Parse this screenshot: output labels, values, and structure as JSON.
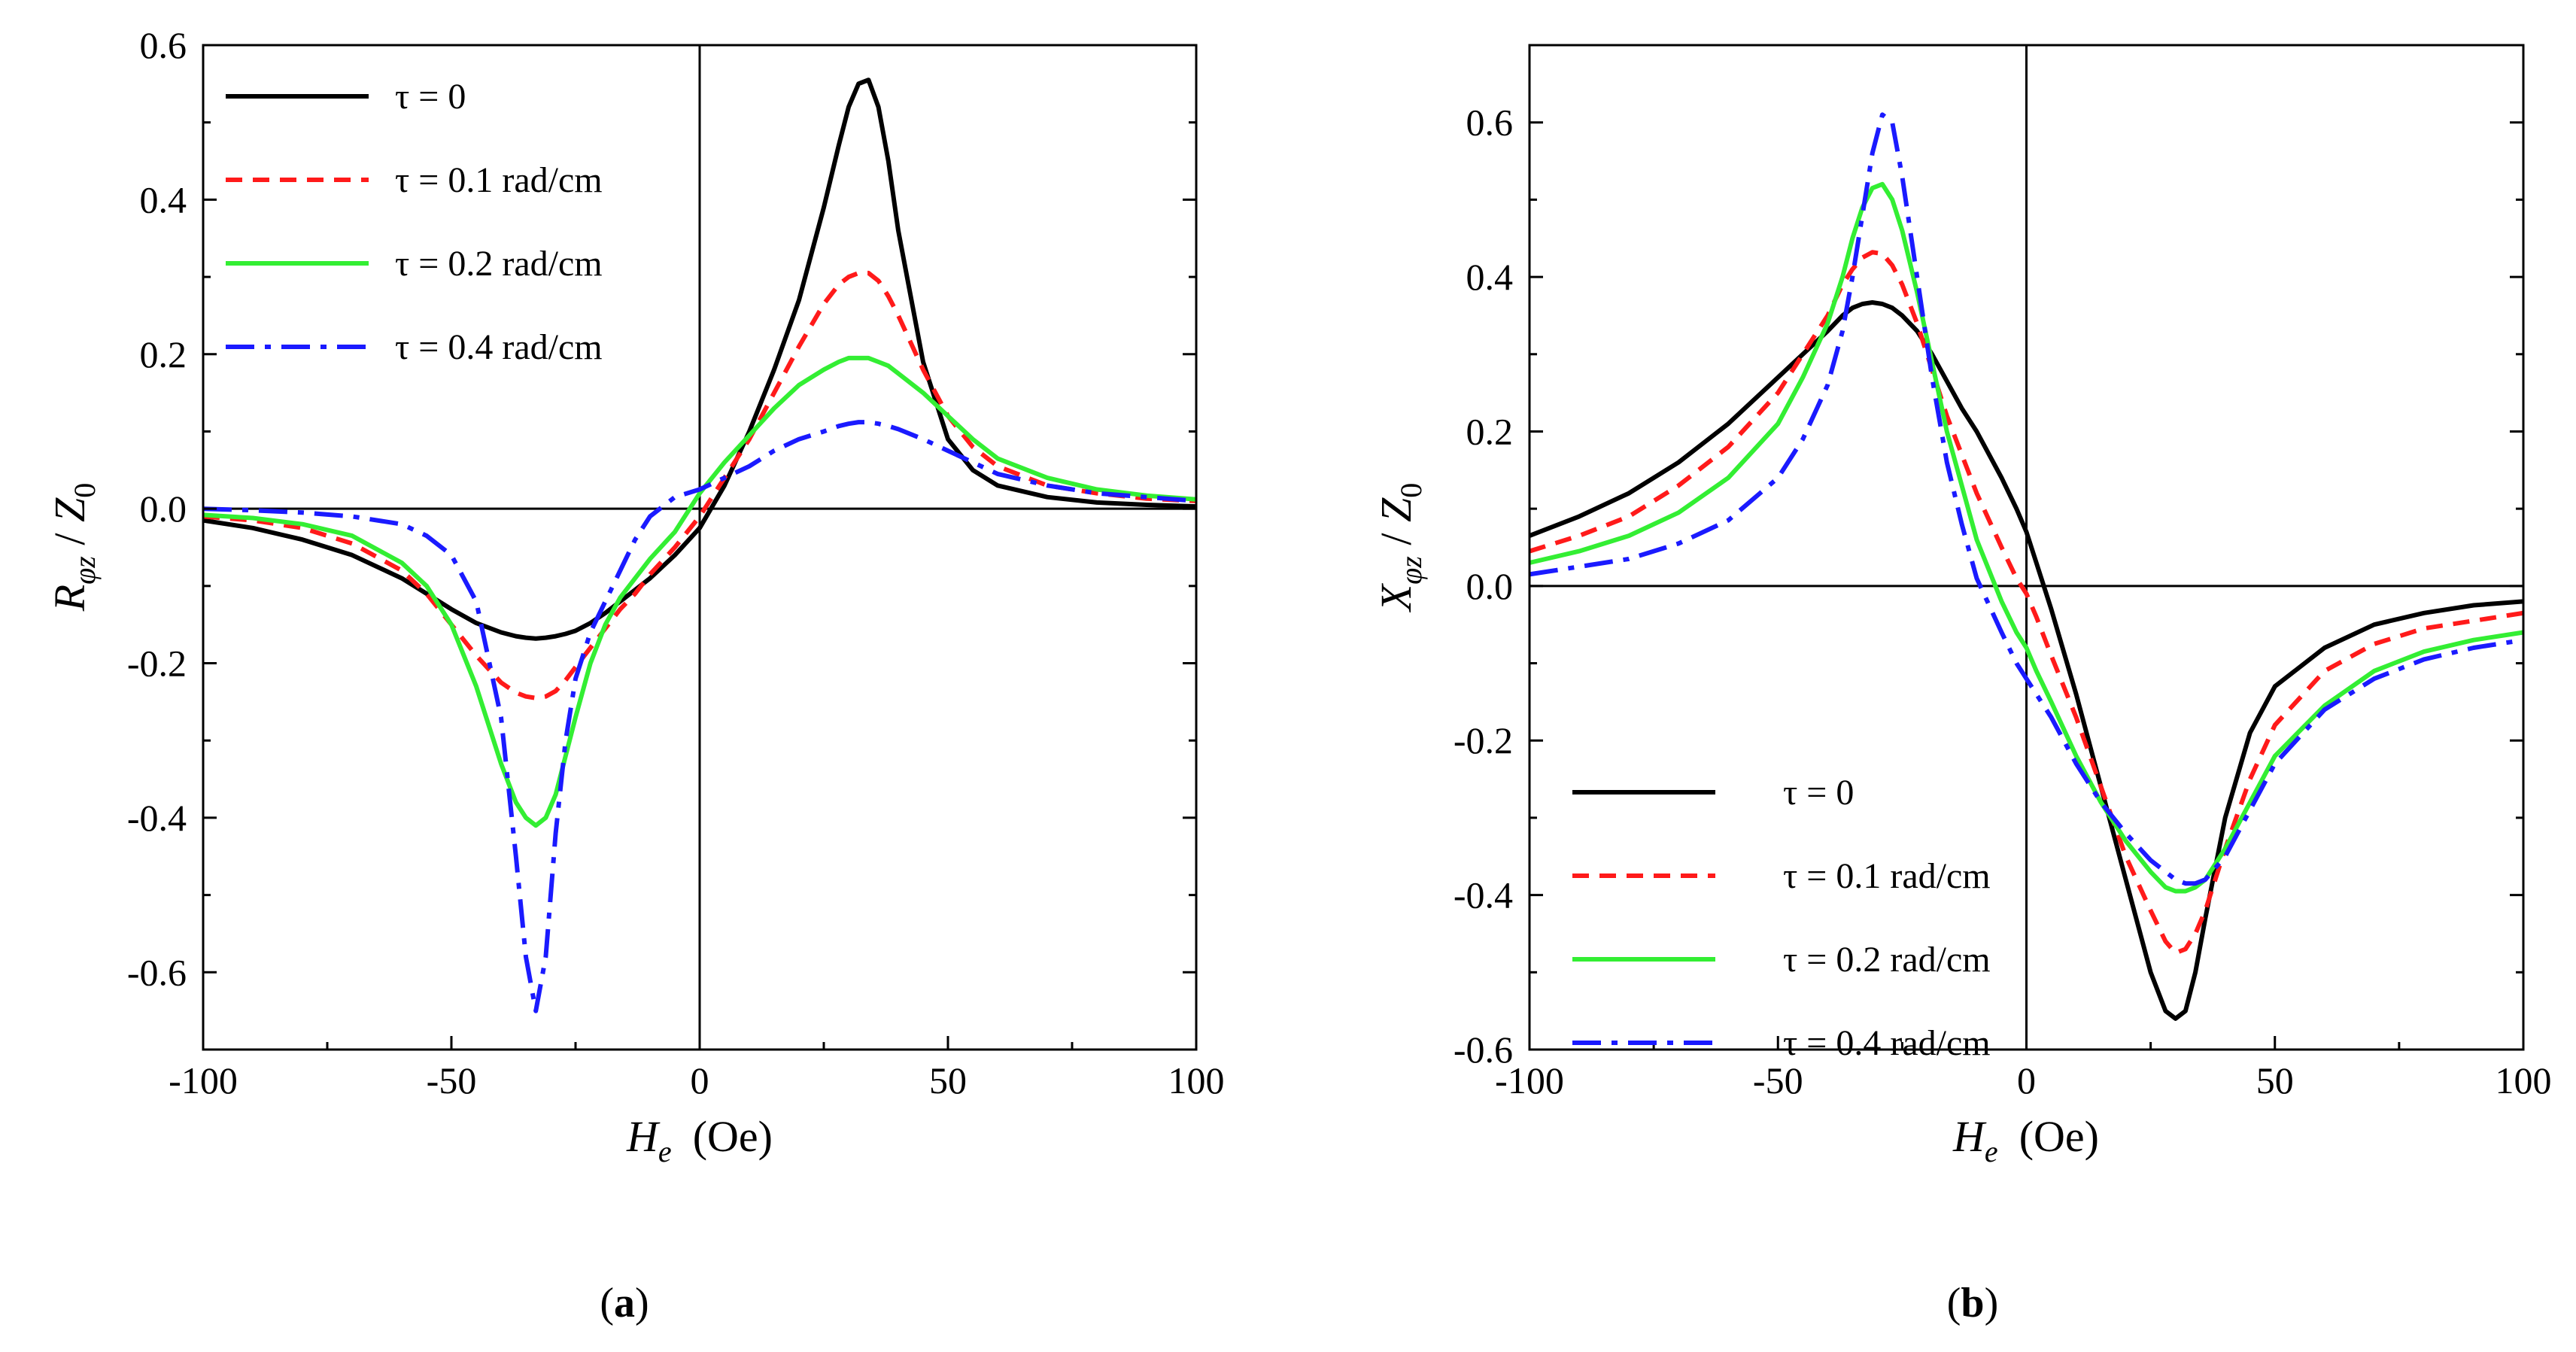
{
  "chart_data": [
    {
      "type": "line",
      "panel_label": "(a)",
      "panel_letter": "a",
      "ylabel": {
        "main": "R",
        "sub": "φz",
        "denom": "Z",
        "denom_sub": "0",
        "sep": " / "
      },
      "xlabel": {
        "main": "H",
        "sub": "e",
        "unit": "(Oe)"
      },
      "xlim": [
        -100,
        100
      ],
      "ylim": [
        -0.7,
        0.6
      ],
      "xticks": [
        -100,
        -50,
        0,
        50,
        100
      ],
      "xtick_labels": [
        "-100",
        "-50",
        "0",
        "50",
        "100"
      ],
      "yticks": [
        -0.6,
        -0.4,
        -0.2,
        0.0,
        0.2,
        0.4,
        0.6
      ],
      "ytick_labels": [
        "-0.6",
        "-0.4",
        "-0.2",
        "0.0",
        "0.2",
        "0.4",
        "0.6"
      ],
      "legend_position": "top-left",
      "x": [
        -100,
        -90,
        -80,
        -70,
        -60,
        -55,
        -50,
        -45,
        -40,
        -37,
        -35,
        -33,
        -31,
        -29,
        -27,
        -25,
        -22,
        -19,
        -16,
        -13,
        -10,
        -5,
        0,
        5,
        10,
        15,
        20,
        25,
        28,
        30,
        32,
        34,
        36,
        38,
        40,
        45,
        50,
        55,
        60,
        70,
        80,
        90,
        100
      ],
      "series": [
        {
          "name": "τ = 0",
          "color": "#000000",
          "style": "solid",
          "values": [
            -0.015,
            -0.025,
            -0.04,
            -0.06,
            -0.09,
            -0.11,
            -0.13,
            -0.148,
            -0.16,
            -0.165,
            -0.167,
            -0.168,
            -0.167,
            -0.165,
            -0.162,
            -0.158,
            -0.148,
            -0.135,
            -0.12,
            -0.105,
            -0.09,
            -0.06,
            -0.025,
            0.03,
            0.1,
            0.18,
            0.27,
            0.39,
            0.47,
            0.52,
            0.55,
            0.555,
            0.52,
            0.45,
            0.36,
            0.19,
            0.09,
            0.05,
            0.03,
            0.015,
            0.008,
            0.005,
            0.003
          ]
        },
        {
          "name": "τ = 0.1 rad/cm",
          "color": "#ff1a1a",
          "style": "dashed",
          "values": [
            -0.01,
            -0.015,
            -0.025,
            -0.045,
            -0.08,
            -0.11,
            -0.15,
            -0.19,
            -0.225,
            -0.238,
            -0.243,
            -0.245,
            -0.243,
            -0.236,
            -0.222,
            -0.205,
            -0.18,
            -0.155,
            -0.13,
            -0.11,
            -0.085,
            -0.05,
            -0.01,
            0.04,
            0.09,
            0.15,
            0.21,
            0.265,
            0.29,
            0.3,
            0.305,
            0.305,
            0.295,
            0.275,
            0.25,
            0.18,
            0.12,
            0.08,
            0.055,
            0.03,
            0.02,
            0.013,
            0.01
          ]
        },
        {
          "name": "τ = 0.2 rad/cm",
          "color": "#33ee33",
          "style": "solid",
          "values": [
            -0.008,
            -0.012,
            -0.02,
            -0.035,
            -0.07,
            -0.1,
            -0.15,
            -0.23,
            -0.33,
            -0.38,
            -0.4,
            -0.41,
            -0.4,
            -0.37,
            -0.32,
            -0.27,
            -0.2,
            -0.15,
            -0.115,
            -0.09,
            -0.065,
            -0.03,
            0.02,
            0.06,
            0.095,
            0.13,
            0.16,
            0.18,
            0.19,
            0.195,
            0.195,
            0.195,
            0.19,
            0.185,
            0.175,
            0.15,
            0.12,
            0.09,
            0.065,
            0.04,
            0.025,
            0.017,
            0.012
          ]
        },
        {
          "name": "τ = 0.4 rad/cm",
          "color": "#1a1aff",
          "style": "dashdot",
          "values": [
            0.0,
            -0.002,
            -0.005,
            -0.01,
            -0.02,
            -0.035,
            -0.06,
            -0.12,
            -0.27,
            -0.45,
            -0.58,
            -0.65,
            -0.58,
            -0.42,
            -0.3,
            -0.22,
            -0.16,
            -0.12,
            -0.08,
            -0.04,
            -0.01,
            0.015,
            0.025,
            0.04,
            0.055,
            0.075,
            0.09,
            0.1,
            0.107,
            0.11,
            0.112,
            0.112,
            0.11,
            0.107,
            0.103,
            0.09,
            0.075,
            0.06,
            0.045,
            0.03,
            0.02,
            0.015,
            0.01
          ]
        }
      ]
    },
    {
      "type": "line",
      "panel_label": "(b)",
      "panel_letter": "b",
      "ylabel": {
        "main": "X",
        "sub": "φz",
        "denom": "Z",
        "denom_sub": "0",
        "sep": " / "
      },
      "xlabel": {
        "main": "H",
        "sub": "e",
        "unit": "(Oe)"
      },
      "xlim": [
        -100,
        100
      ],
      "ylim": [
        -0.6,
        0.7
      ],
      "xticks": [
        -100,
        -50,
        0,
        50,
        100
      ],
      "xtick_labels": [
        "-100",
        "-50",
        "0",
        "50",
        "100"
      ],
      "yticks": [
        -0.6,
        -0.4,
        -0.2,
        0.0,
        0.2,
        0.4,
        0.6
      ],
      "ytick_labels": [
        "-0.6",
        "-0.4",
        "-0.2",
        "0.0",
        "0.2",
        "0.4",
        "0.6"
      ],
      "legend_position": "bottom-left",
      "x": [
        -100,
        -90,
        -80,
        -70,
        -60,
        -50,
        -45,
        -40,
        -37,
        -35,
        -33,
        -31,
        -29,
        -27,
        -25,
        -22,
        -19,
        -16,
        -13,
        -10,
        -5,
        -2,
        0,
        2,
        5,
        10,
        15,
        20,
        25,
        28,
        30,
        32,
        34,
        36,
        40,
        45,
        50,
        60,
        70,
        80,
        90,
        100
      ],
      "series": [
        {
          "name": "τ = 0",
          "color": "#000000",
          "style": "solid",
          "values": [
            0.065,
            0.09,
            0.12,
            0.16,
            0.21,
            0.27,
            0.3,
            0.33,
            0.35,
            0.36,
            0.365,
            0.367,
            0.365,
            0.36,
            0.35,
            0.33,
            0.3,
            0.265,
            0.23,
            0.2,
            0.14,
            0.1,
            0.07,
            0.03,
            -0.03,
            -0.14,
            -0.26,
            -0.38,
            -0.5,
            -0.55,
            -0.56,
            -0.55,
            -0.5,
            -0.43,
            -0.3,
            -0.19,
            -0.13,
            -0.08,
            -0.05,
            -0.035,
            -0.025,
            -0.02
          ]
        },
        {
          "name": "τ = 0.1 rad/cm",
          "color": "#ff1a1a",
          "style": "dashed",
          "values": [
            0.045,
            0.065,
            0.09,
            0.13,
            0.18,
            0.25,
            0.3,
            0.35,
            0.39,
            0.41,
            0.425,
            0.432,
            0.43,
            0.415,
            0.39,
            0.34,
            0.28,
            0.22,
            0.17,
            0.12,
            0.05,
            0.01,
            -0.01,
            -0.04,
            -0.09,
            -0.17,
            -0.26,
            -0.35,
            -0.42,
            -0.46,
            -0.475,
            -0.47,
            -0.45,
            -0.42,
            -0.34,
            -0.25,
            -0.18,
            -0.11,
            -0.075,
            -0.055,
            -0.045,
            -0.035
          ]
        },
        {
          "name": "τ = 0.2 rad/cm",
          "color": "#33ee33",
          "style": "solid",
          "values": [
            0.03,
            0.045,
            0.065,
            0.095,
            0.14,
            0.21,
            0.27,
            0.34,
            0.4,
            0.45,
            0.49,
            0.515,
            0.52,
            0.5,
            0.46,
            0.38,
            0.29,
            0.2,
            0.13,
            0.06,
            -0.02,
            -0.06,
            -0.08,
            -0.11,
            -0.15,
            -0.22,
            -0.28,
            -0.33,
            -0.37,
            -0.39,
            -0.395,
            -0.395,
            -0.39,
            -0.38,
            -0.34,
            -0.28,
            -0.22,
            -0.155,
            -0.11,
            -0.085,
            -0.07,
            -0.06
          ]
        },
        {
          "name": "τ = 0.4 rad/cm",
          "color": "#1a1aff",
          "style": "dashdot",
          "values": [
            0.015,
            0.025,
            0.035,
            0.055,
            0.085,
            0.14,
            0.19,
            0.26,
            0.33,
            0.4,
            0.48,
            0.56,
            0.61,
            0.6,
            0.53,
            0.4,
            0.27,
            0.16,
            0.08,
            0.01,
            -0.06,
            -0.1,
            -0.12,
            -0.14,
            -0.17,
            -0.23,
            -0.28,
            -0.32,
            -0.355,
            -0.37,
            -0.38,
            -0.385,
            -0.385,
            -0.38,
            -0.35,
            -0.29,
            -0.23,
            -0.16,
            -0.12,
            -0.095,
            -0.08,
            -0.07
          ]
        }
      ]
    }
  ]
}
